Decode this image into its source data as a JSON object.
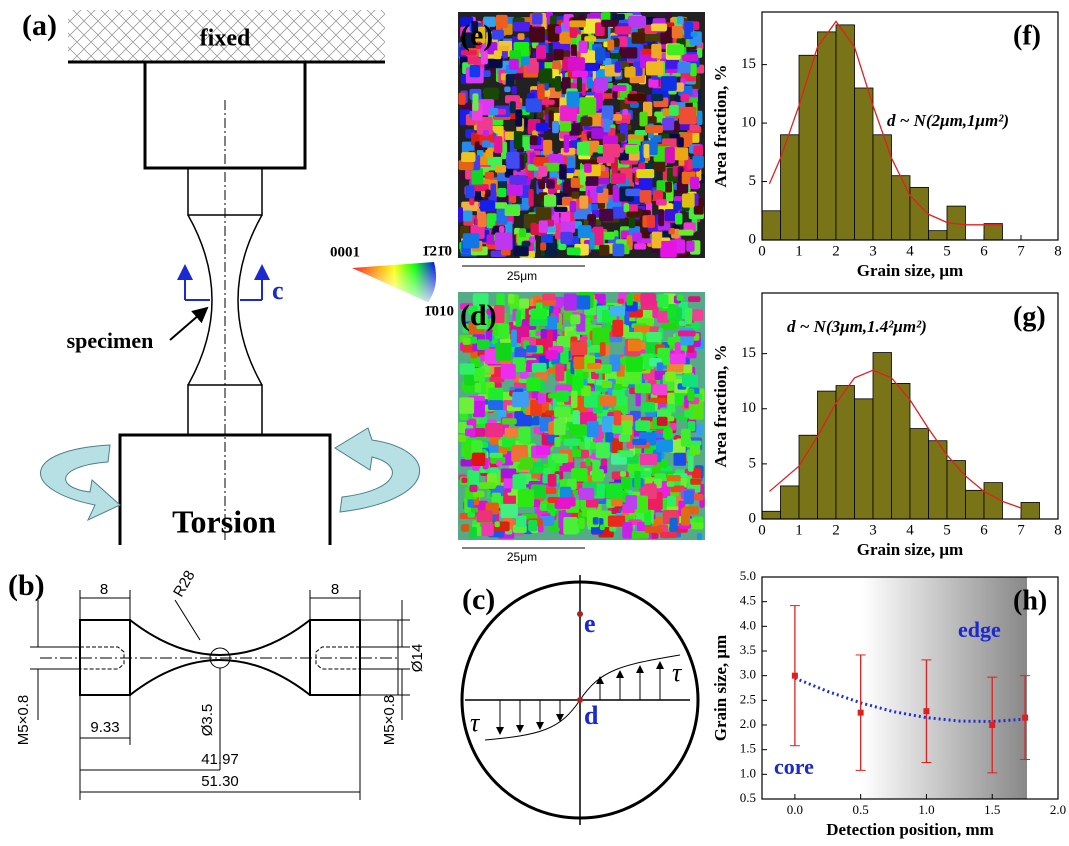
{
  "panel_a": {
    "label": "(a)",
    "fixed": "fixed",
    "specimen": "specimen",
    "section": "c",
    "torsion": "Torsion"
  },
  "ipf_key": {
    "corner_1": "0001",
    "corner_2": "1̄21̄0",
    "corner_3": "1̄010"
  },
  "map_e": {
    "label": "(e)",
    "scale": "25μm"
  },
  "map_d": {
    "label": "(d)",
    "scale": "25μm"
  },
  "panel_b": {
    "label": "(b)",
    "grip_left": "8",
    "radius": "R28",
    "grip_right": "8",
    "diameter_grip": "Ø14",
    "thread_left": "M5×0.8",
    "offset": "9.33",
    "diameter_neck": "Ø3.5",
    "inner_length": "41.97",
    "total_length": "51.30",
    "thread_right": "M5×0.8"
  },
  "panel_c": {
    "label": "(c)",
    "point_e": "e",
    "point_d": "d",
    "tau_right": "τ",
    "tau_left": "τ"
  },
  "chart_data": [
    {
      "type": "histogram",
      "label": "(f)",
      "annotation": "d ~ N(2μm,1μm²)",
      "xlabel": "Grain size, μm",
      "ylabel": "Area fraction, %",
      "bins": [
        0,
        0.5,
        1,
        1.5,
        2,
        2.5,
        3,
        3.5,
        4,
        4.5,
        5,
        5.5,
        6,
        6.5
      ],
      "values": [
        2.5,
        9,
        15.8,
        17.8,
        18.4,
        13,
        9,
        5.5,
        4.5,
        0.8,
        2.9,
        0,
        1.4
      ],
      "color": "#7a7418",
      "fit_x": [
        0.2,
        0.5,
        1,
        1.5,
        2,
        2.5,
        3,
        3.5,
        4,
        4.5,
        5,
        5.5,
        6,
        6.5
      ],
      "fit_values": [
        4.8,
        7,
        11.5,
        16.5,
        18.7,
        16.5,
        11.5,
        7,
        3.8,
        2.2,
        1.5,
        1.3,
        1.3,
        1.3
      ],
      "fit_color": "#e02020",
      "xlim": [
        0,
        8
      ],
      "xticks": [
        0,
        1,
        2,
        3,
        4,
        5,
        6,
        7,
        8
      ],
      "ylim": [
        0,
        19.5
      ],
      "yticks": [
        0,
        5,
        10,
        15
      ]
    },
    {
      "type": "histogram",
      "label": "(g)",
      "annotation": "d ~ N(3μm,1.4²μm²)",
      "xlabel": "Grain size, μm",
      "ylabel": "Area fraction, %",
      "bins": [
        0,
        0.5,
        1,
        1.5,
        2,
        2.5,
        3,
        3.5,
        4,
        4.5,
        5,
        5.5,
        6,
        6.5,
        7,
        7.5
      ],
      "values": [
        0.7,
        3,
        7.6,
        11.6,
        12.1,
        10.9,
        15.1,
        12.3,
        8.2,
        7.1,
        5.3,
        2.6,
        3.3,
        0,
        1.5
      ],
      "color": "#7a7418",
      "fit_x": [
        0.2,
        1,
        1.5,
        2,
        2.5,
        3,
        3.5,
        4,
        4.5,
        5,
        5.5,
        6,
        6.5,
        7
      ],
      "fit_values": [
        2.5,
        4.8,
        7.5,
        10.5,
        12.8,
        13.5,
        12.8,
        10.8,
        8.2,
        5.8,
        3.9,
        2.5,
        1.6,
        1
      ],
      "fit_color": "#e02020",
      "xlim": [
        0,
        8
      ],
      "xticks": [
        0,
        1,
        2,
        3,
        4,
        5,
        6,
        7,
        8
      ],
      "ylim": [
        0,
        20.5
      ],
      "yticks": [
        0,
        5,
        10,
        15
      ]
    },
    {
      "type": "errorbar",
      "label": "(h)",
      "annotations": [
        "core",
        "edge"
      ],
      "xlabel": "Detection position, mm",
      "ylabel": "Grain size, μm",
      "x": [
        0,
        0.5,
        1,
        1.5,
        1.75
      ],
      "values": [
        3.0,
        2.25,
        2.28,
        2.0,
        2.15
      ],
      "errors": [
        1.42,
        1.17,
        1.04,
        0.97,
        0.85
      ],
      "color": "#e02020",
      "fit_x": [
        0,
        0.25,
        0.5,
        0.75,
        1,
        1.25,
        1.5,
        1.75
      ],
      "fit_values": [
        2.95,
        2.68,
        2.45,
        2.27,
        2.15,
        2.08,
        2.07,
        2.12
      ],
      "fit_color": "#2030d0",
      "xlim": [
        -0.25,
        2.0
      ],
      "xticks": [
        {
          "value": 0,
          "label": "0.0"
        },
        {
          "value": 0.5,
          "label": "0.5"
        },
        {
          "value": 1,
          "label": "1.0"
        },
        {
          "value": 1.5,
          "label": "1.5"
        },
        {
          "value": 2,
          "label": "2.0"
        }
      ],
      "ylim": [
        0.5,
        5.0
      ],
      "yticks": [
        0.5,
        {
          "value": 1,
          "label": "1.0"
        },
        1.5,
        {
          "value": 2,
          "label": "2.0"
        },
        2.5,
        {
          "value": 3,
          "label": "3.0"
        },
        3.5,
        {
          "value": 4,
          "label": "4.0"
        },
        4.5,
        {
          "value": 5,
          "label": "5.0"
        }
      ]
    }
  ]
}
